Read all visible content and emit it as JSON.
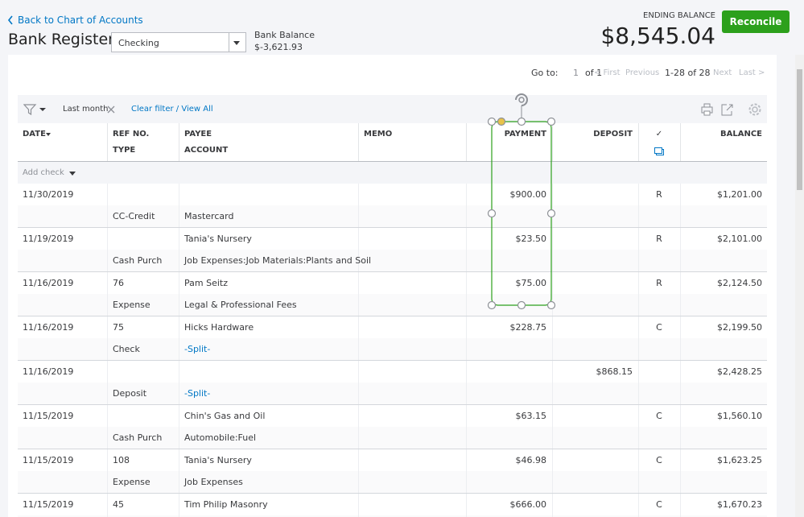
{
  "header": {
    "back_link": "Back to Chart of Accounts",
    "title": "Bank Register",
    "account_select": "Checking",
    "bank_balance_label": "Bank Balance",
    "bank_balance": "$-3,621.93",
    "ending_balance_label": "ENDING BALANCE",
    "ending_balance": "$8,545.04",
    "reconcile_button": "Reconcile"
  },
  "pagination": {
    "goto_label": "Go to:",
    "page": "1",
    "of": "of 1",
    "first": "< First",
    "previous": "Previous",
    "range": "1-28 of 28",
    "next": "Next",
    "last": "Last >"
  },
  "filter": {
    "period": "Last month",
    "clear": "Clear filter / View All"
  },
  "table": {
    "columns": {
      "date": "DATE",
      "ref": "REF NO.",
      "type": "TYPE",
      "payee": "PAYEE",
      "account": "ACCOUNT",
      "memo": "MEMO",
      "payment": "PAYMENT",
      "deposit": "DEPOSIT",
      "status": "✓",
      "balance": "BALANCE"
    },
    "add_check": "Add check",
    "rows": [
      {
        "date": "11/30/2019",
        "payment": "$900.00",
        "status": "R",
        "balance": "$1,201.00",
        "type": "CC-Credit",
        "account": "Mastercard"
      },
      {
        "date": "11/19/2019",
        "payee": "Tania's Nursery",
        "payment": "$23.50",
        "status": "R",
        "balance": "$2,101.00",
        "type": "Cash Purch",
        "account": "Job Expenses:Job Materials:Plants and Soil"
      },
      {
        "date": "11/16/2019",
        "ref": "76",
        "payee": "Pam Seitz",
        "payment": "$75.00",
        "status": "R",
        "balance": "$2,124.50",
        "type": "Expense",
        "account": "Legal & Professional Fees"
      },
      {
        "date": "11/16/2019",
        "ref": "75",
        "payee": "Hicks Hardware",
        "payment": "$228.75",
        "status": "C",
        "balance": "$2,199.50",
        "type": "Check",
        "account": "-Split-"
      },
      {
        "date": "11/16/2019",
        "deposit": "$868.15",
        "balance": "$2,428.25",
        "type": "Deposit",
        "account": "-Split-"
      },
      {
        "date": "11/15/2019",
        "payee": "Chin's Gas and Oil",
        "payment": "$63.15",
        "status": "C",
        "balance": "$1,560.10",
        "type": "Cash Purch",
        "account": "Automobile:Fuel"
      },
      {
        "date": "11/15/2019",
        "ref": "108",
        "payee": "Tania's Nursery",
        "payment": "$46.98",
        "status": "C",
        "balance": "$1,623.25",
        "type": "Expense",
        "account": "Job Expenses"
      },
      {
        "date": "11/15/2019",
        "ref": "45",
        "payee": "Tim Philip Masonry",
        "payment": "$666.00",
        "status": "C",
        "balance": "$1,670.23"
      }
    ]
  }
}
